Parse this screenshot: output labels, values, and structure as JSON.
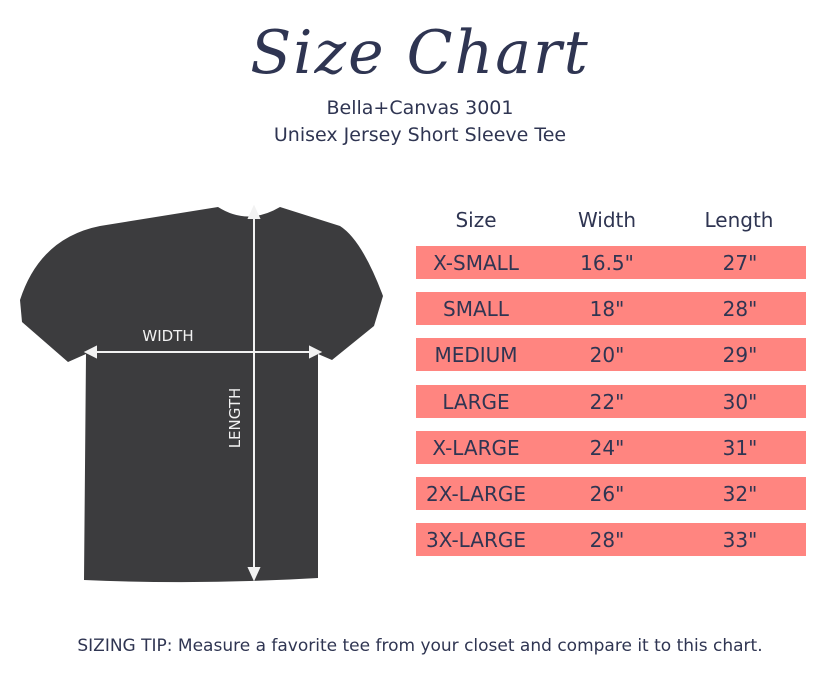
{
  "title": "Size Chart",
  "subtitle_line1": "Bella+Canvas 3001",
  "subtitle_line2": "Unisex Jersey Short Sleeve Tee",
  "diagram": {
    "width_label": "WIDTH",
    "length_label": "LENGTH",
    "shirt_color": "#3c3c3e"
  },
  "table": {
    "headers": [
      "Size",
      "Width",
      "Length"
    ],
    "row_color": "#ff8580",
    "rows": [
      [
        "X-SMALL",
        "16.5\"",
        "27\""
      ],
      [
        "SMALL",
        "18\"",
        "28\""
      ],
      [
        "MEDIUM",
        "20\"",
        "29\""
      ],
      [
        "LARGE",
        "22\"",
        "30\""
      ],
      [
        "X-LARGE",
        "24\"",
        "31\""
      ],
      [
        "2X-LARGE",
        "26\"",
        "32\""
      ],
      [
        "3X-LARGE",
        "28\"",
        "33\""
      ]
    ]
  },
  "tip": "SIZING TIP: Measure a favorite tee from your closet and compare it to this chart."
}
